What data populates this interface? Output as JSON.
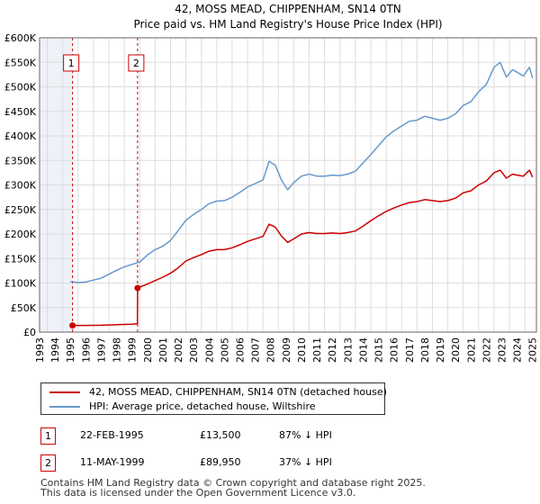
{
  "chart_data": {
    "type": "line",
    "title": "42, MOSS MEAD, CHIPPENHAM, SN14 0TN",
    "subtitle": "Price paid vs. HM Land Registry's House Price Index (HPI)",
    "xlim": [
      1993,
      2025.25
    ],
    "ylim": [
      0,
      600000
    ],
    "y_ticks": [
      {
        "value": 0,
        "label": "£0"
      },
      {
        "value": 50000,
        "label": "£50K"
      },
      {
        "value": 100000,
        "label": "£100K"
      },
      {
        "value": 150000,
        "label": "£150K"
      },
      {
        "value": 200000,
        "label": "£200K"
      },
      {
        "value": 250000,
        "label": "£250K"
      },
      {
        "value": 300000,
        "label": "£300K"
      },
      {
        "value": 350000,
        "label": "£350K"
      },
      {
        "value": 400000,
        "label": "£400K"
      },
      {
        "value": 450000,
        "label": "£450K"
      },
      {
        "value": 500000,
        "label": "£500K"
      },
      {
        "value": 550000,
        "label": "£550K"
      },
      {
        "value": 600000,
        "label": "£600K"
      }
    ],
    "x_ticks": [
      "1993",
      "1994",
      "1995",
      "1996",
      "1997",
      "1998",
      "1999",
      "2000",
      "2001",
      "2002",
      "2003",
      "2004",
      "2005",
      "2006",
      "2007",
      "2008",
      "2009",
      "2010",
      "2011",
      "2012",
      "2013",
      "2014",
      "2015",
      "2016",
      "2017",
      "2018",
      "2019",
      "2020",
      "2021",
      "2022",
      "2023",
      "2024",
      "2025"
    ],
    "shaded_regions": [
      [
        1993,
        1995.14
      ]
    ],
    "hpi_series": {
      "name": "HPI: Average price, detached house, Wiltshire",
      "color": "#6699cc",
      "x": [
        1995.0,
        1995.5,
        1996.0,
        1996.5,
        1997.0,
        1997.5,
        1998.0,
        1998.5,
        1999.0,
        1999.5,
        2000.0,
        2000.5,
        2001.0,
        2001.5,
        2002.0,
        2002.5,
        2003.0,
        2003.5,
        2004.0,
        2004.5,
        2005.0,
        2005.5,
        2006.0,
        2006.5,
        2007.0,
        2007.5,
        2007.9,
        2008.3,
        2008.7,
        2009.1,
        2009.5,
        2010.0,
        2010.5,
        2011.0,
        2011.5,
        2012.0,
        2012.5,
        2013.0,
        2013.5,
        2014.0,
        2014.5,
        2015.0,
        2015.5,
        2016.0,
        2016.5,
        2017.0,
        2017.5,
        2018.0,
        2018.5,
        2019.0,
        2019.5,
        2020.0,
        2020.5,
        2021.0,
        2021.5,
        2022.0,
        2022.5,
        2022.9,
        2023.3,
        2023.7,
        2024.0,
        2024.4,
        2024.8,
        2025.0
      ],
      "values": [
        103000,
        101000,
        102000,
        106000,
        110000,
        118000,
        126000,
        133000,
        138000,
        143000,
        157000,
        168000,
        175000,
        187000,
        207000,
        228000,
        240000,
        250000,
        262000,
        267000,
        268000,
        275000,
        285000,
        296000,
        303000,
        310000,
        348000,
        340000,
        310000,
        290000,
        305000,
        318000,
        322000,
        318000,
        318000,
        320000,
        319000,
        322000,
        328000,
        345000,
        362000,
        380000,
        398000,
        410000,
        420000,
        430000,
        432000,
        440000,
        436000,
        432000,
        436000,
        445000,
        462000,
        470000,
        490000,
        505000,
        540000,
        550000,
        520000,
        535000,
        530000,
        522000,
        540000,
        518000
      ]
    },
    "price_series": {
      "name": "42, MOSS MEAD, CHIPPENHAM, SN14 0TN (detached house)",
      "color": "#cc0000",
      "x": [
        1995.14,
        1996.0,
        1997.0,
        1998.0,
        1999.0,
        1999.35,
        1999.36,
        2000.0,
        2000.5,
        2001.0,
        2001.5,
        2002.0,
        2002.5,
        2003.0,
        2003.5,
        2004.0,
        2004.5,
        2005.0,
        2005.5,
        2006.0,
        2006.5,
        2007.0,
        2007.5,
        2007.9,
        2008.3,
        2008.7,
        2009.1,
        2009.5,
        2010.0,
        2010.5,
        2011.0,
        2011.5,
        2012.0,
        2012.5,
        2013.0,
        2013.5,
        2014.0,
        2014.5,
        2015.0,
        2015.5,
        2016.0,
        2016.5,
        2017.0,
        2017.5,
        2018.0,
        2018.5,
        2019.0,
        2019.5,
        2020.0,
        2020.5,
        2021.0,
        2021.5,
        2022.0,
        2022.5,
        2022.9,
        2023.3,
        2023.7,
        2024.0,
        2024.4,
        2024.8,
        2025.0
      ],
      "values": [
        13500,
        13500,
        14000,
        15000,
        16000,
        17000,
        89950,
        98000,
        105000,
        112000,
        120000,
        131000,
        145000,
        152000,
        158000,
        165000,
        168000,
        168000,
        172000,
        178000,
        185000,
        190000,
        195000,
        220000,
        214000,
        196000,
        183000,
        190000,
        200000,
        203000,
        201000,
        201000,
        202000,
        201000,
        203000,
        206000,
        216000,
        227000,
        237000,
        246000,
        253000,
        259000,
        264000,
        266000,
        270000,
        268000,
        266000,
        268000,
        273000,
        284000,
        288000,
        300000,
        308000,
        325000,
        330000,
        314000,
        322000,
        320000,
        318000,
        330000,
        316000
      ]
    },
    "transactions": [
      {
        "x": 1995.14,
        "value": 13500,
        "label": "1"
      },
      {
        "x": 1999.36,
        "value": 89950,
        "label": "2"
      }
    ]
  },
  "legend": {
    "price_label": "42, MOSS MEAD, CHIPPENHAM, SN14 0TN (detached house)",
    "hpi_label": "HPI: Average price, detached house, Wiltshire"
  },
  "table": [
    {
      "num": "1",
      "date": "22-FEB-1995",
      "price": "£13,500",
      "hpi": "87% ↓ HPI"
    },
    {
      "num": "2",
      "date": "11-MAY-1999",
      "price": "£89,950",
      "hpi": "37% ↓ HPI"
    }
  ],
  "footer": {
    "line1": "Contains HM Land Registry data © Crown copyright and database right 2025.",
    "line2": "This data is licensed under the Open Government Licence v3.0."
  },
  "colors": {
    "price": "#cc0000",
    "hpi": "#6699cc",
    "grid": "#dddddd",
    "shade": "#eef1f8"
  }
}
